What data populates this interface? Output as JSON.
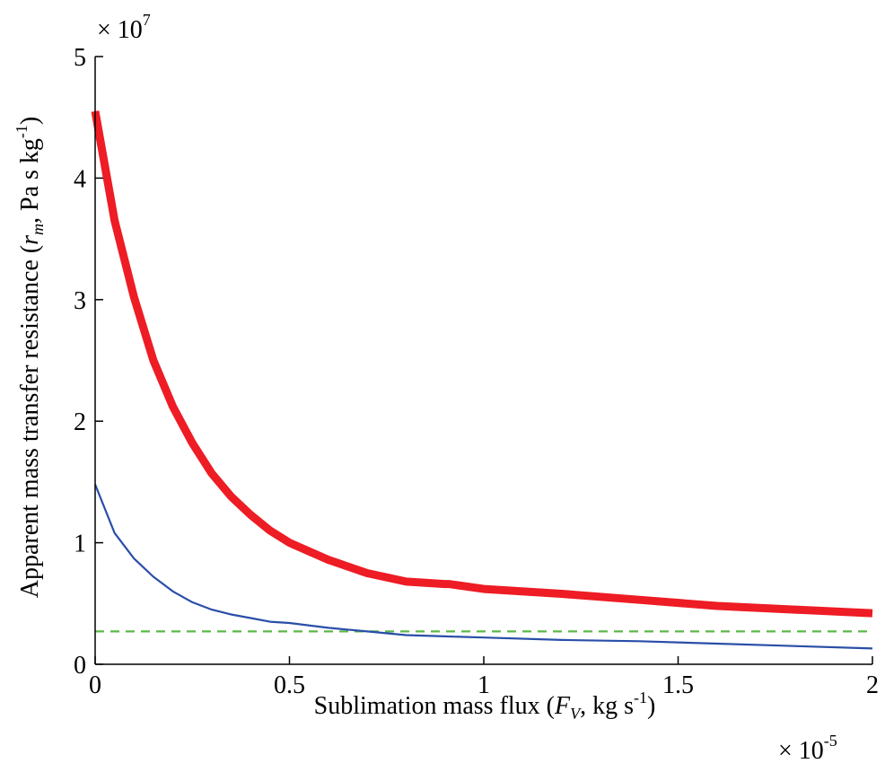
{
  "chart_data": {
    "type": "line",
    "xlabel": {
      "pre": "Sublimation mass flux (",
      "var": "F",
      "sub": "V",
      "mid": ", kg s",
      "sup": "-1",
      "post": ")"
    },
    "ylabel": {
      "pre": "Apparent mass transfer resistance (",
      "var": "r",
      "sub": "m",
      "mid": ", Pa s kg",
      "sup": "-1",
      "post": ")"
    },
    "x_multiplier": {
      "base": "× 10",
      "exp": "-5"
    },
    "y_multiplier": {
      "base": "× 10",
      "exp": "7"
    },
    "xlim": [
      0,
      2
    ],
    "ylim": [
      0,
      5
    ],
    "xticks": [
      0,
      0.5,
      1,
      1.5,
      2
    ],
    "xtick_labels": [
      "0",
      "0.5",
      "1",
      "1.5",
      "2"
    ],
    "yticks": [
      0,
      1,
      2,
      3,
      4,
      5
    ],
    "ytick_labels": [
      "0",
      "1",
      "2",
      "3",
      "4",
      "5"
    ],
    "grid": false,
    "series": [
      {
        "color": "#ee1c24",
        "style": "solid-thick",
        "x": [
          0,
          0.05,
          0.1,
          0.15,
          0.2,
          0.25,
          0.3,
          0.35,
          0.4,
          0.45,
          0.5,
          0.6,
          0.7,
          0.8,
          0.9,
          0.91,
          1.0,
          1.2,
          1.4,
          1.6,
          1.8,
          2.0
        ],
        "y": [
          4.55,
          3.65,
          3.02,
          2.5,
          2.12,
          1.82,
          1.57,
          1.38,
          1.23,
          1.1,
          1.0,
          0.86,
          0.75,
          0.68,
          0.66,
          0.66,
          0.62,
          0.58,
          0.53,
          0.48,
          0.45,
          0.42
        ]
      },
      {
        "color": "#2a4ea8",
        "style": "solid-thin",
        "x": [
          0,
          0.05,
          0.1,
          0.15,
          0.2,
          0.25,
          0.3,
          0.35,
          0.4,
          0.45,
          0.5,
          0.6,
          0.7,
          0.8,
          0.9,
          1.0,
          1.2,
          1.4,
          1.6,
          1.8,
          2.0
        ],
        "y": [
          1.48,
          1.08,
          0.87,
          0.72,
          0.6,
          0.51,
          0.45,
          0.41,
          0.38,
          0.35,
          0.34,
          0.3,
          0.27,
          0.24,
          0.23,
          0.22,
          0.2,
          0.19,
          0.17,
          0.15,
          0.13
        ]
      },
      {
        "color": "#5cb84a",
        "style": "dashed",
        "x": [
          0,
          2
        ],
        "y": [
          0.27,
          0.27
        ]
      }
    ]
  }
}
